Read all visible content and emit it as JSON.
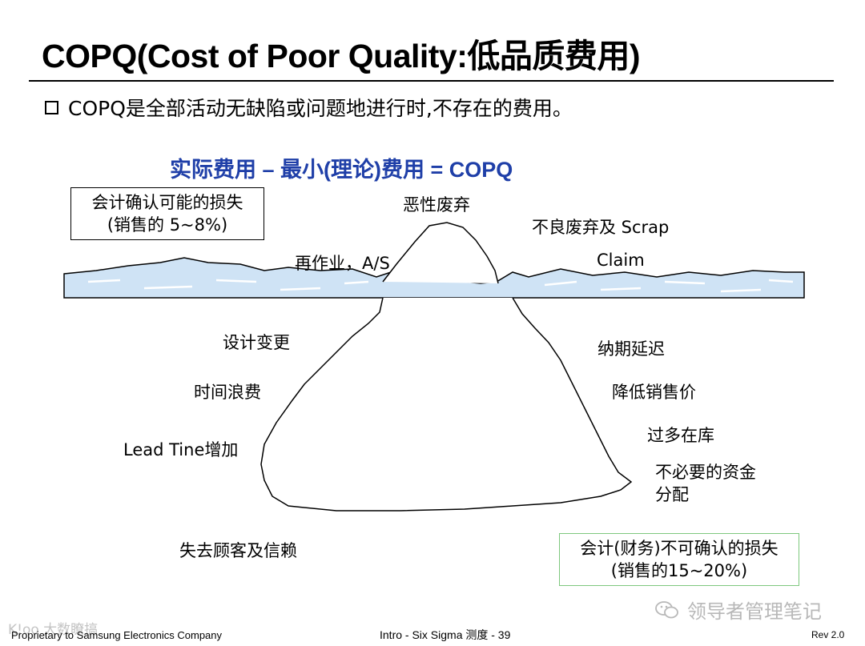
{
  "title": "COPQ(Cost of Poor Quality:低品质费用)",
  "bullet": "COPQ是全部活动无缺陷或问题地进行时,不存在的费用。",
  "formula": "实际费用 – 最小(理论)费用 = COPQ",
  "visible_box": {
    "line1": "会计确认可能的损失",
    "line2": "(销售的 5~8%)"
  },
  "hidden_box": {
    "line1": "会计(财务)不可确认的损失",
    "line2": "(销售的15~20%)"
  },
  "above_water": {
    "top": "恶性废弃",
    "scrap": "不良废弃及 Scrap",
    "rework": "再作业，A/S",
    "claim": "Claim"
  },
  "below_water": {
    "design_change": "设计变更",
    "time_waste": "时间浪费",
    "lead_time": "Lead Tine增加",
    "lose_customer": "失去顾客及信赖",
    "delivery_delay": "纳期延迟",
    "price_reduction": "降低销售价",
    "excess_inventory": "过多在库",
    "fund_line1": "不必要的资金",
    "fund_line2": "分配"
  },
  "footer": {
    "left": "Proprietary to Samsung Electronics Company",
    "center": "Intro - Six Sigma 测度 - 39",
    "right": "Rev 2.0"
  },
  "watermarks": {
    "right": "领导者管理笔记",
    "left": "K!oo 大数瞭搞"
  },
  "colors": {
    "formula": "#1f3fa8",
    "water": "#cfe3f5",
    "hidden_box_border": "#7ec87e"
  }
}
